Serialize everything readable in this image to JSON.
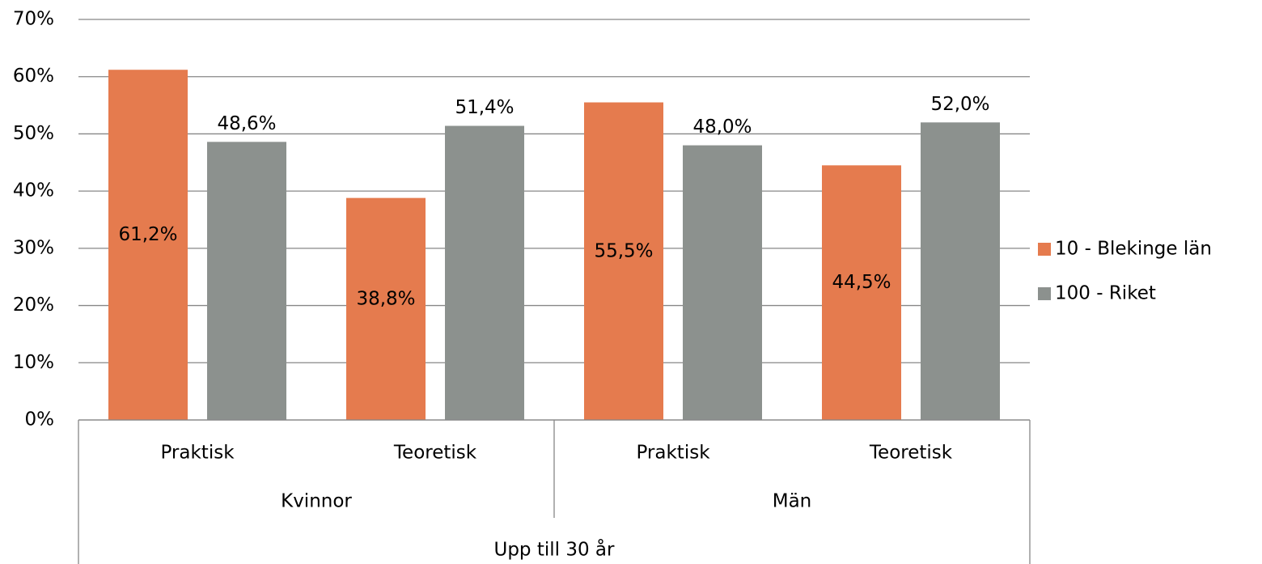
{
  "chart_data": {
    "type": "bar",
    "categories": [
      "Praktisk",
      "Teoretisk",
      "Praktisk",
      "Teoretisk"
    ],
    "groups": [
      "Kvinnor",
      "Män"
    ],
    "supergroup": "Upp till 30 år",
    "series": [
      {
        "name": "10 - Blekinge län",
        "color": "#e57b4e",
        "values": [
          61.2,
          38.8,
          55.5,
          44.5
        ],
        "value_labels": [
          "61,2%",
          "38,8%",
          "55,5%",
          "44,5%"
        ]
      },
      {
        "name": "100 - Riket",
        "color": "#8c918e",
        "values": [
          48.6,
          51.4,
          48.0,
          52.0
        ],
        "value_labels": [
          "48,6%",
          "51,4%",
          "48,0%",
          "52,0%"
        ]
      }
    ],
    "ylim": [
      0,
      70
    ],
    "yticks": [
      {
        "value": 0,
        "label": "0%"
      },
      {
        "value": 10,
        "label": "10%"
      },
      {
        "value": 20,
        "label": "20%"
      },
      {
        "value": 30,
        "label": "30%"
      },
      {
        "value": 40,
        "label": "40%"
      },
      {
        "value": 50,
        "label": "50%"
      },
      {
        "value": 60,
        "label": "60%"
      },
      {
        "value": 70,
        "label": "70%"
      }
    ],
    "grid": true,
    "legend": "right"
  }
}
